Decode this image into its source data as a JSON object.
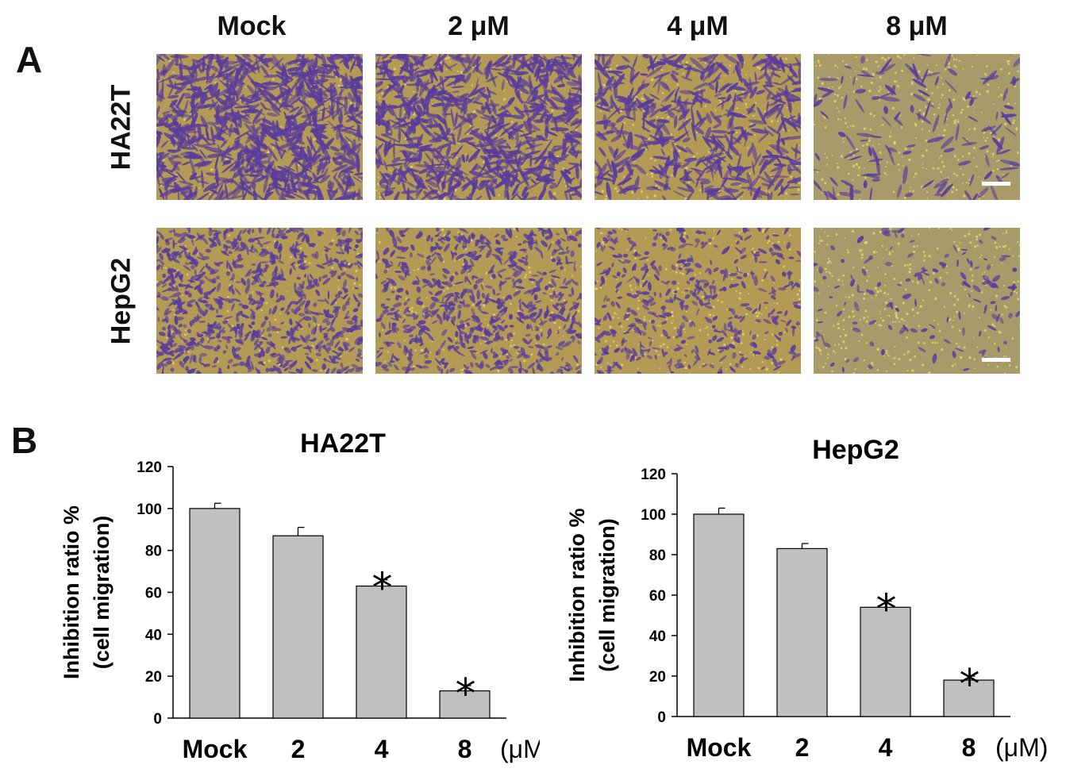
{
  "panels": {
    "a_letter": "A",
    "b_letter": "B"
  },
  "micrographs": {
    "columns": [
      "Mock",
      "2 μM",
      "4 μM",
      "8 μM"
    ],
    "rows": [
      "HA22T",
      "HepG2"
    ],
    "stain_density": [
      [
        0.95,
        0.85,
        0.55,
        0.12
      ],
      [
        0.9,
        0.75,
        0.45,
        0.12
      ]
    ],
    "colors": {
      "background_dense": "#b39a55",
      "background_sparse": "#a89b6a",
      "cell_stain": "#5a3c9c",
      "pore_dot": "#e8d46a"
    }
  },
  "chart_data": [
    {
      "type": "bar",
      "title": "HA22T",
      "ylabel": "Inhibition ratio %\n(cell migration)",
      "ylabel_lines": [
        "Inhibition ratio %",
        "(cell migration)"
      ],
      "categories": [
        "Mock",
        "2",
        "4",
        "8"
      ],
      "unit_label": "(μM)",
      "values": [
        100,
        87,
        63,
        13
      ],
      "errors": [
        2.5,
        4,
        3,
        2.5
      ],
      "significant": [
        false,
        false,
        true,
        true
      ],
      "significance_marker": "*",
      "ylim": [
        0,
        120
      ],
      "yticks": [
        0,
        20,
        40,
        60,
        80,
        100,
        120
      ],
      "bar_color": "#c0c0c0",
      "grid": false,
      "legend": "none"
    },
    {
      "type": "bar",
      "title": "HepG2",
      "ylabel": "Inhibition ratio %\n(cell migration)",
      "ylabel_lines": [
        "Inhibition ratio %",
        "(cell migration)"
      ],
      "categories": [
        "Mock",
        "2",
        "4",
        "8"
      ],
      "unit_label": "(μM)",
      "values": [
        100,
        83,
        54,
        18
      ],
      "errors": [
        3,
        2.5,
        3,
        2
      ],
      "significant": [
        false,
        false,
        true,
        true
      ],
      "significance_marker": "*",
      "ylim": [
        0,
        120
      ],
      "yticks": [
        0,
        20,
        40,
        60,
        80,
        100,
        120
      ],
      "bar_color": "#c0c0c0",
      "grid": false,
      "legend": "none"
    }
  ]
}
